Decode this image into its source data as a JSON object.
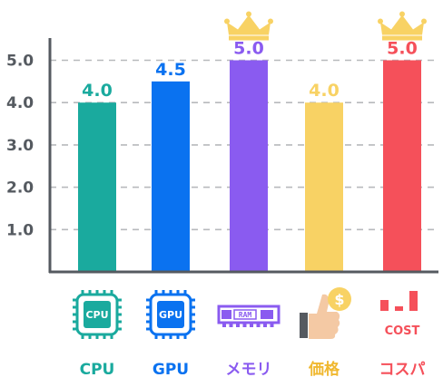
{
  "chart_data": {
    "type": "bar",
    "categories": [
      "CPU",
      "GPU",
      "メモリ",
      "価格",
      "コスパ"
    ],
    "values": [
      4.0,
      4.5,
      5.0,
      4.0,
      5.0
    ],
    "value_labels": [
      "4.0",
      "4.5",
      "5.0",
      "4.0",
      "5.0"
    ],
    "colors": [
      "#1aaa9e",
      "#0a72f0",
      "#8a5bf0",
      "#f8d264",
      "#f5505a"
    ],
    "crowned": [
      false,
      false,
      true,
      false,
      true
    ],
    "yticks": [
      "1.0",
      "2.0",
      "3.0",
      "4.0",
      "5.0"
    ],
    "ylim": [
      0,
      5.5
    ],
    "grid": true,
    "icons": [
      "cpu-chip-icon",
      "gpu-chip-icon",
      "ram-module-icon",
      "price-thumbs-up-coin-icon",
      "cost-bars-icon"
    ],
    "icon_text": {
      "cpu": "CPU",
      "gpu": "GPU",
      "ram": "RAM",
      "cost": "COST",
      "coin": "$"
    }
  }
}
